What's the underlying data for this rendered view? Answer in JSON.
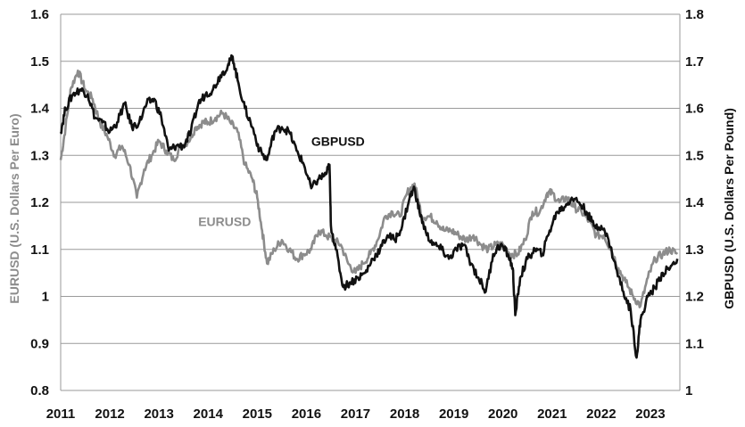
{
  "chart_data": {
    "type": "line",
    "grid": true,
    "x_range": [
      2011,
      2023.6
    ],
    "x_ticks": [
      "2011",
      "2012",
      "2013",
      "2014",
      "2015",
      "2016",
      "2017",
      "2018",
      "2019",
      "2020",
      "2021",
      "2022",
      "2023"
    ],
    "y_left": {
      "label": "EURUSD (U.S. Dollars Per Euro)",
      "range": [
        0.8,
        1.6
      ],
      "ticks": [
        "0.8",
        "0.9",
        "1",
        "1.1",
        "1.2",
        "1.3",
        "1.4",
        "1.5",
        "1.6"
      ]
    },
    "y_right": {
      "label": "GBPUSD (U.S. Dollars Per Pound)",
      "range": [
        1.0,
        1.8
      ],
      "ticks": [
        "1",
        "1.1",
        "1.2",
        "1.3",
        "1.4",
        "1.5",
        "1.6",
        "1.7",
        "1.8"
      ]
    },
    "series": [
      {
        "name": "EURUSD",
        "axis": "left",
        "color": "#8c8c8c",
        "x": [
          2011.0,
          2011.1,
          2011.2,
          2011.35,
          2011.5,
          2011.65,
          2011.8,
          2011.95,
          2012.1,
          2012.25,
          2012.4,
          2012.55,
          2012.7,
          2012.85,
          2013.0,
          2013.15,
          2013.3,
          2013.45,
          2013.6,
          2013.75,
          2013.9,
          2014.0,
          2014.15,
          2014.3,
          2014.45,
          2014.6,
          2014.75,
          2014.9,
          2015.0,
          2015.1,
          2015.2,
          2015.35,
          2015.5,
          2015.65,
          2015.8,
          2015.95,
          2016.1,
          2016.25,
          2016.4,
          2016.55,
          2016.7,
          2016.85,
          2017.0,
          2017.15,
          2017.3,
          2017.45,
          2017.6,
          2017.75,
          2017.9,
          2018.05,
          2018.2,
          2018.35,
          2018.5,
          2018.65,
          2018.8,
          2018.95,
          2019.1,
          2019.25,
          2019.4,
          2019.55,
          2019.7,
          2019.85,
          2020.0,
          2020.15,
          2020.3,
          2020.45,
          2020.6,
          2020.75,
          2020.9,
          2021.0,
          2021.15,
          2021.3,
          2021.45,
          2021.6,
          2021.75,
          2021.9,
          2022.05,
          2022.2,
          2022.35,
          2022.5,
          2022.65,
          2022.8,
          2022.95,
          2023.1,
          2023.25,
          2023.4,
          2023.55
        ],
        "values": [
          1.29,
          1.36,
          1.44,
          1.48,
          1.44,
          1.42,
          1.37,
          1.34,
          1.3,
          1.32,
          1.28,
          1.21,
          1.27,
          1.3,
          1.33,
          1.31,
          1.29,
          1.32,
          1.33,
          1.36,
          1.37,
          1.37,
          1.38,
          1.39,
          1.37,
          1.35,
          1.28,
          1.25,
          1.21,
          1.14,
          1.07,
          1.1,
          1.12,
          1.1,
          1.08,
          1.09,
          1.1,
          1.14,
          1.13,
          1.12,
          1.11,
          1.07,
          1.05,
          1.07,
          1.09,
          1.12,
          1.17,
          1.18,
          1.17,
          1.22,
          1.24,
          1.17,
          1.17,
          1.16,
          1.14,
          1.14,
          1.13,
          1.12,
          1.13,
          1.11,
          1.1,
          1.11,
          1.11,
          1.09,
          1.09,
          1.12,
          1.18,
          1.18,
          1.22,
          1.22,
          1.2,
          1.21,
          1.19,
          1.18,
          1.16,
          1.13,
          1.13,
          1.1,
          1.06,
          1.03,
          1.0,
          0.98,
          1.04,
          1.08,
          1.09,
          1.1,
          1.09
        ]
      },
      {
        "name": "GBPUSD",
        "axis": "right",
        "color": "#111111",
        "x": [
          2011.0,
          2011.1,
          2011.25,
          2011.4,
          2011.55,
          2011.7,
          2011.85,
          2012.0,
          2012.15,
          2012.3,
          2012.45,
          2012.6,
          2012.75,
          2012.9,
          2013.05,
          2013.2,
          2013.35,
          2013.5,
          2013.65,
          2013.8,
          2013.95,
          2014.1,
          2014.25,
          2014.4,
          2014.5,
          2014.6,
          2014.75,
          2014.9,
          2015.05,
          2015.2,
          2015.35,
          2015.5,
          2015.65,
          2015.8,
          2015.95,
          2016.1,
          2016.25,
          2016.4,
          2016.47,
          2016.5,
          2016.6,
          2016.75,
          2016.9,
          2017.05,
          2017.2,
          2017.35,
          2017.5,
          2017.65,
          2017.8,
          2017.95,
          2018.1,
          2018.2,
          2018.3,
          2018.45,
          2018.6,
          2018.75,
          2018.9,
          2019.05,
          2019.2,
          2019.35,
          2019.5,
          2019.65,
          2019.8,
          2019.95,
          2020.1,
          2020.2,
          2020.25,
          2020.35,
          2020.5,
          2020.65,
          2020.8,
          2020.95,
          2021.1,
          2021.25,
          2021.4,
          2021.55,
          2021.7,
          2021.85,
          2022.0,
          2022.15,
          2022.3,
          2022.45,
          2022.6,
          2022.72,
          2022.8,
          2022.95,
          2023.1,
          2023.25,
          2023.4,
          2023.55
        ],
        "values": [
          1.55,
          1.6,
          1.63,
          1.64,
          1.63,
          1.58,
          1.57,
          1.55,
          1.57,
          1.61,
          1.56,
          1.57,
          1.61,
          1.62,
          1.58,
          1.51,
          1.52,
          1.52,
          1.55,
          1.61,
          1.63,
          1.64,
          1.67,
          1.69,
          1.71,
          1.66,
          1.6,
          1.56,
          1.51,
          1.49,
          1.55,
          1.56,
          1.55,
          1.51,
          1.48,
          1.43,
          1.45,
          1.46,
          1.48,
          1.35,
          1.3,
          1.22,
          1.23,
          1.24,
          1.25,
          1.28,
          1.3,
          1.33,
          1.32,
          1.35,
          1.41,
          1.43,
          1.38,
          1.33,
          1.31,
          1.3,
          1.28,
          1.3,
          1.31,
          1.27,
          1.24,
          1.21,
          1.29,
          1.31,
          1.29,
          1.26,
          1.16,
          1.24,
          1.28,
          1.3,
          1.29,
          1.34,
          1.38,
          1.39,
          1.41,
          1.4,
          1.38,
          1.35,
          1.35,
          1.32,
          1.26,
          1.21,
          1.17,
          1.07,
          1.15,
          1.2,
          1.22,
          1.25,
          1.26,
          1.28
        ]
      }
    ],
    "annotations": [
      {
        "text": "GBPUSD",
        "x": 2016.1,
        "y_right": 1.52,
        "color": "#111111"
      },
      {
        "text": "EURUSD",
        "x": 2013.8,
        "y_left": 1.15,
        "color": "#8c8c8c"
      }
    ]
  }
}
